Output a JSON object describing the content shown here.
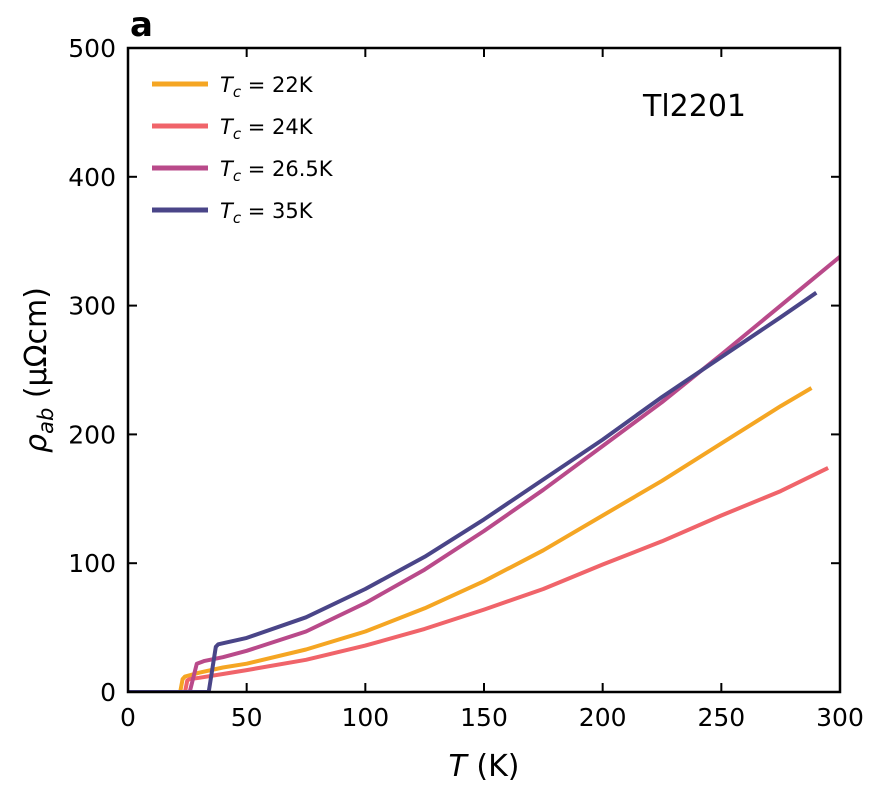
{
  "panel_label": "a",
  "annotation": "Tl2201",
  "chart_data": {
    "type": "line",
    "xlabel": {
      "symbol": "T",
      "unit": "(K)"
    },
    "ylabel": {
      "symbol": "ρ",
      "subscript": "ab",
      "unit": "(μΩcm)"
    },
    "xlim": [
      0,
      300
    ],
    "ylim": [
      0,
      500
    ],
    "x_ticks": [
      0,
      50,
      100,
      150,
      200,
      250,
      300
    ],
    "y_ticks": [
      0,
      100,
      200,
      300,
      400,
      500
    ],
    "grid": false,
    "legend_position": "top-left",
    "series": [
      {
        "name": "T_c = 22K",
        "legend": {
          "symbol": "T",
          "sub": "c",
          "rest": " = 22K"
        },
        "color": "#f5a623",
        "points": [
          [
            0,
            0
          ],
          [
            22,
            0
          ],
          [
            23,
            10
          ],
          [
            24,
            12
          ],
          [
            30,
            15
          ],
          [
            40,
            19
          ],
          [
            50,
            22
          ],
          [
            75,
            33
          ],
          [
            100,
            47
          ],
          [
            125,
            65
          ],
          [
            150,
            86
          ],
          [
            175,
            110
          ],
          [
            200,
            137
          ],
          [
            225,
            164
          ],
          [
            250,
            193
          ],
          [
            275,
            222
          ],
          [
            288,
            236
          ]
        ]
      },
      {
        "name": "T_c = 24K",
        "legend": {
          "symbol": "T",
          "sub": "c",
          "rest": " = 24K"
        },
        "color": "#f0646a",
        "points": [
          [
            0,
            0
          ],
          [
            24,
            0
          ],
          [
            25,
            9
          ],
          [
            26,
            10
          ],
          [
            30,
            11
          ],
          [
            40,
            14
          ],
          [
            50,
            17
          ],
          [
            75,
            25
          ],
          [
            100,
            36
          ],
          [
            125,
            49
          ],
          [
            150,
            64
          ],
          [
            175,
            80
          ],
          [
            200,
            99
          ],
          [
            225,
            117
          ],
          [
            250,
            137
          ],
          [
            275,
            156
          ],
          [
            295,
            174
          ]
        ]
      },
      {
        "name": "T_c = 26.5K",
        "legend": {
          "symbol": "T",
          "sub": "c",
          "rest": " = 26.5K"
        },
        "color": "#b94a8a",
        "points": [
          [
            0,
            0
          ],
          [
            26,
            0
          ],
          [
            29,
            22
          ],
          [
            32,
            24
          ],
          [
            40,
            27
          ],
          [
            50,
            32
          ],
          [
            75,
            47
          ],
          [
            100,
            69
          ],
          [
            125,
            95
          ],
          [
            150,
            125
          ],
          [
            175,
            157
          ],
          [
            200,
            191
          ],
          [
            225,
            225
          ],
          [
            250,
            262
          ],
          [
            275,
            300
          ],
          [
            300,
            338
          ]
        ]
      },
      {
        "name": "T_c = 35K",
        "legend": {
          "symbol": "T",
          "sub": "c",
          "rest": " = 35K"
        },
        "color": "#4a4588",
        "points": [
          [
            0,
            0
          ],
          [
            34,
            0
          ],
          [
            37,
            35
          ],
          [
            38,
            37
          ],
          [
            50,
            42
          ],
          [
            75,
            58
          ],
          [
            100,
            80
          ],
          [
            125,
            105
          ],
          [
            150,
            134
          ],
          [
            175,
            165
          ],
          [
            200,
            196
          ],
          [
            225,
            229
          ],
          [
            250,
            260
          ],
          [
            275,
            291
          ],
          [
            290,
            310
          ]
        ]
      }
    ]
  }
}
